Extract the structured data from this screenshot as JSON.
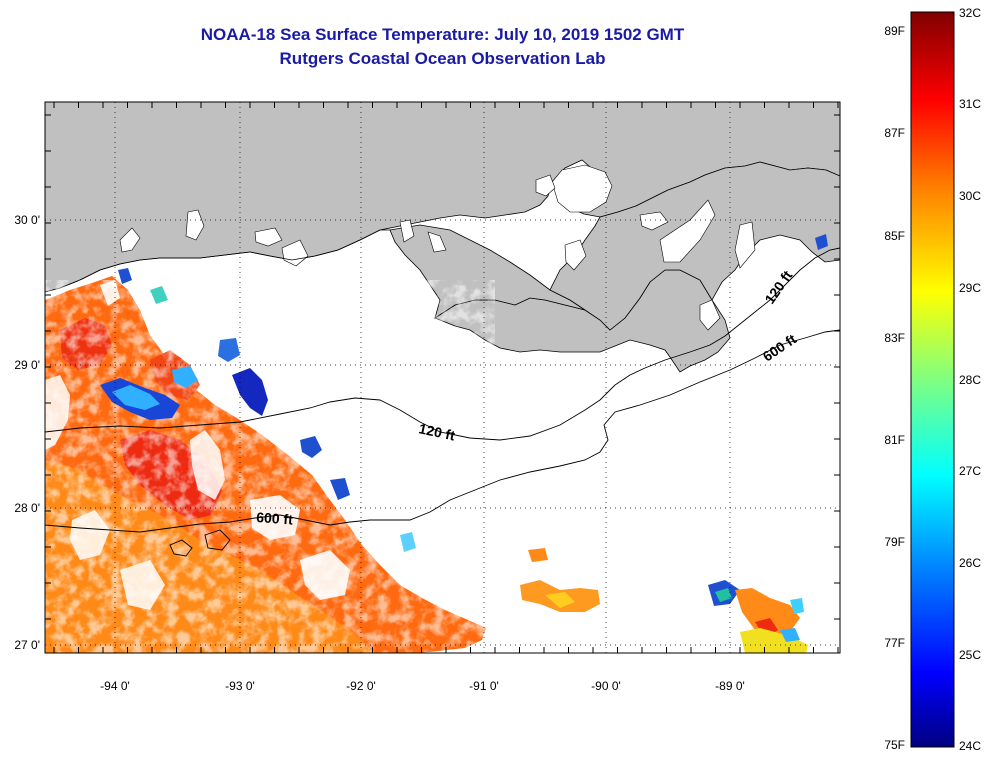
{
  "title": "NOAA-18 Sea Surface Temperature:  July 10, 2019 1502 GMT",
  "subtitle": "Rutgers Coastal Ocean Observation Lab",
  "map": {
    "region": "Northern Gulf of Mexico / Louisiana coast",
    "land_color": "#c0c0c0",
    "no_data_color": "#ffffff",
    "x_tick_labels": [
      "-94 0'",
      "-93 0'",
      "-92 0'",
      "-91 0'",
      "-90 0'",
      "-89 0'"
    ],
    "y_tick_labels": [
      "30 0'",
      "29 0'",
      "28 0'",
      "27 0'"
    ],
    "grid": "dotted",
    "contour_labels": [
      "120 ft",
      "600 ft",
      "120 ft",
      "600 ft"
    ]
  },
  "colorbar": {
    "fahrenheit_labels": [
      "89F",
      "87F",
      "85F",
      "83F",
      "81F",
      "79F",
      "77F",
      "75F"
    ],
    "celsius_labels": [
      "32C",
      "31C",
      "30C",
      "29C",
      "28C",
      "27C",
      "26C",
      "25C",
      "24C"
    ],
    "colors": [
      "#000080",
      "#0000ff",
      "#0080ff",
      "#00ffff",
      "#80ff80",
      "#ffff00",
      "#ff8000",
      "#ff0000",
      "#800000"
    ]
  }
}
